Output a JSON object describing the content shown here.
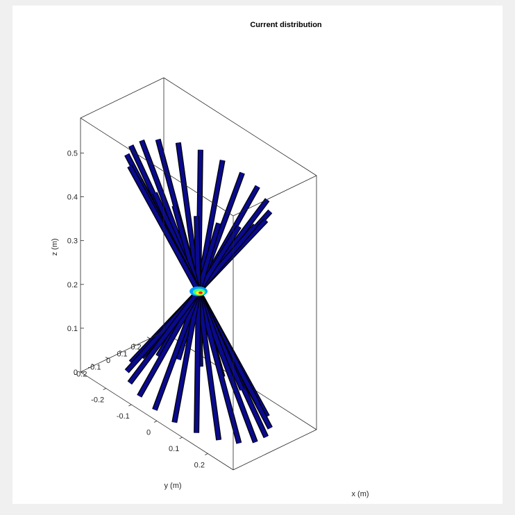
{
  "chart_data": {
    "type": "3d-line",
    "title": "Current distribution",
    "xlabel": "x (m)",
    "ylabel": "y (m)",
    "zlabel": "z (m)",
    "xlim": [
      -0.3,
      0.3
    ],
    "ylim": [
      -0.3,
      0.3
    ],
    "zlim": [
      0,
      0.58
    ],
    "x_ticks": [
      "-0.2",
      "-0.1",
      "0",
      "0.1",
      "0.2"
    ],
    "y_ticks": [
      "-0.2",
      "-0.1",
      "0",
      "0.1",
      "0.2"
    ],
    "z_ticks": [
      "0",
      "0.1",
      "0.2",
      "0.3",
      "0.4",
      "0.5"
    ],
    "structure": {
      "description_values": {
        "apex": [
          0,
          0,
          0.25
        ],
        "cone_half_angle_deg": 45,
        "element_count_per_cone": 20,
        "element_length_m": 0.35
      }
    },
    "colors": {
      "element": "#0a0a8c",
      "element_edge": "#000000",
      "hotspot_colormap": [
        "#0a0a8c",
        "#00a0ff",
        "#40ff80",
        "#ffff00",
        "#ff2000"
      ]
    }
  }
}
